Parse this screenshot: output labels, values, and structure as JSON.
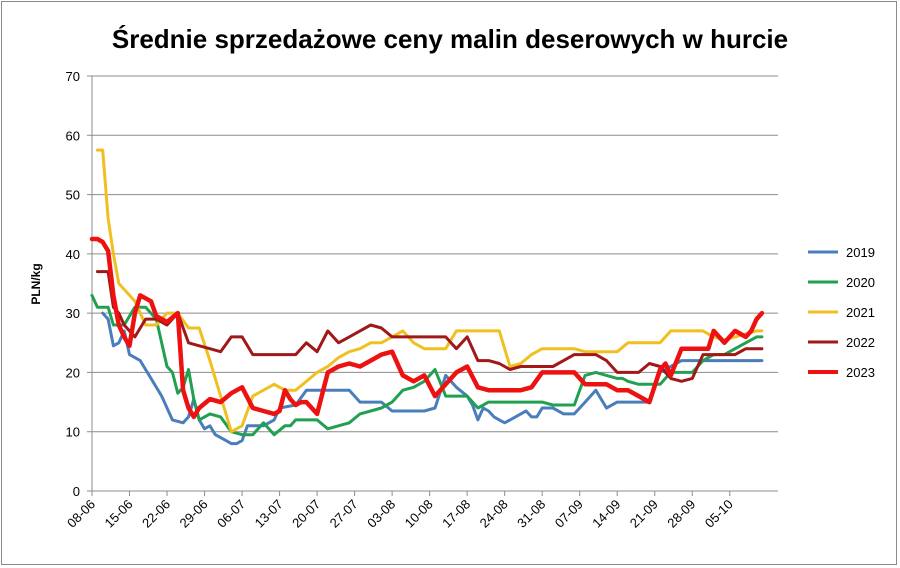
{
  "chart_data": {
    "type": "line",
    "title": "Średnie sprzedażowe ceny malin deserowych w hurcie",
    "xlabel": "",
    "ylabel": "PLN/kg",
    "ylim": [
      0,
      70
    ],
    "yticks": [
      0,
      10,
      20,
      30,
      40,
      50,
      60,
      70
    ],
    "xlim": [
      0,
      128
    ],
    "x_tick_labels": [
      "08-06",
      "15-06",
      "22-06",
      "29-06",
      "06-07",
      "13-07",
      "20-07",
      "27-07",
      "03-08",
      "10-08",
      "17-08",
      "24-08",
      "31-08",
      "07-09",
      "14-09",
      "21-09",
      "28-09",
      "05-10"
    ],
    "x_tick_days": [
      0,
      7,
      14,
      21,
      28,
      35,
      42,
      49,
      56,
      63,
      70,
      77,
      84,
      91,
      98,
      105,
      112,
      119
    ],
    "grid": "horizontal",
    "legend_position": "right",
    "series": [
      {
        "name": "2019",
        "color": "#4a7ebb",
        "x": [
          2,
          3,
          4,
          5,
          6,
          7,
          9,
          11,
          13,
          15,
          17,
          18,
          19,
          20,
          21,
          22,
          23,
          24,
          25,
          26,
          27,
          28,
          29,
          30,
          31,
          32,
          33,
          34,
          35,
          38,
          40,
          42,
          44,
          46,
          48,
          50,
          52,
          54,
          56,
          58,
          60,
          62,
          64,
          66,
          68,
          70,
          71,
          72,
          73,
          74,
          75,
          76,
          77,
          78,
          79,
          80,
          81,
          82,
          83,
          84,
          86,
          88,
          90,
          92,
          94,
          96,
          98,
          100,
          102,
          104,
          106,
          108,
          110,
          112,
          114,
          116,
          118,
          120,
          121,
          122,
          124,
          125
        ],
        "y": [
          30,
          29,
          24.5,
          25,
          27,
          23,
          22,
          19,
          16,
          12,
          11.5,
          12.5,
          15.5,
          12,
          10.5,
          11,
          9.5,
          9,
          8.5,
          8,
          8,
          8.5,
          11,
          11,
          11,
          11,
          11.5,
          12,
          14,
          14.5,
          17,
          17,
          17,
          17,
          17,
          15,
          15,
          15,
          13.5,
          13.5,
          13.5,
          13.5,
          14,
          19.5,
          17.5,
          16,
          14.5,
          12,
          14,
          13.5,
          12.5,
          12,
          11.5,
          12,
          12.5,
          13,
          13.5,
          12.5,
          12.5,
          14,
          14,
          13,
          13,
          15,
          17,
          14,
          15,
          15,
          15,
          15,
          20,
          21,
          22,
          22,
          22,
          22,
          22,
          22,
          22,
          22,
          22,
          22
        ]
      },
      {
        "name": "2020",
        "color": "#20a050",
        "x": [
          0,
          1,
          3,
          4,
          6,
          8,
          10,
          12,
          14,
          15,
          16,
          17,
          18,
          19,
          20,
          22,
          24,
          26,
          28,
          30,
          32,
          34,
          36,
          37,
          38,
          40,
          42,
          44,
          46,
          48,
          50,
          52,
          54,
          56,
          58,
          60,
          62,
          64,
          66,
          68,
          70,
          72,
          74,
          76,
          78,
          80,
          82,
          84,
          86,
          88,
          90,
          92,
          94,
          96,
          98,
          99,
          100,
          102,
          104,
          106,
          108,
          110,
          112,
          114,
          116,
          118,
          120,
          122,
          124,
          125
        ],
        "y": [
          33,
          31,
          31,
          28,
          28,
          31,
          31,
          29,
          21,
          20,
          16.5,
          17.5,
          20.5,
          15.5,
          12,
          13,
          12.5,
          10,
          9.5,
          9.5,
          11.5,
          9.5,
          11,
          11,
          12,
          12,
          12,
          10.5,
          11,
          11.5,
          13,
          13.5,
          14,
          15,
          17,
          17.5,
          18.5,
          20.5,
          16,
          16,
          16,
          14,
          15,
          15,
          15,
          15,
          15,
          15,
          14.5,
          14.5,
          14.5,
          19.5,
          20,
          19.5,
          19,
          19,
          18.5,
          18,
          18,
          18,
          20,
          20,
          20,
          22,
          23,
          23,
          24,
          25,
          26,
          26
        ]
      },
      {
        "name": "2021",
        "color": "#f0c020",
        "x": [
          1,
          2,
          3,
          4,
          5,
          6,
          8,
          10,
          12,
          14,
          16,
          18,
          20,
          22,
          24,
          26,
          28,
          30,
          32,
          34,
          36,
          38,
          40,
          42,
          44,
          46,
          48,
          50,
          52,
          54,
          56,
          58,
          60,
          62,
          64,
          66,
          68,
          70,
          72,
          74,
          76,
          78,
          80,
          82,
          84,
          86,
          88,
          90,
          92,
          94,
          96,
          98,
          100,
          102,
          104,
          106,
          108,
          110,
          112,
          114,
          116,
          118,
          120,
          122,
          124,
          125
        ],
        "y": [
          57.5,
          57.5,
          46,
          40,
          35,
          34,
          32,
          28,
          28,
          30,
          30,
          27.5,
          27.5,
          22,
          16,
          10,
          11,
          16,
          17,
          18,
          17,
          17,
          18.5,
          20,
          21,
          22.5,
          23.5,
          24,
          25,
          25,
          26,
          27,
          25,
          24,
          24,
          24,
          27,
          27,
          27,
          27,
          27,
          21,
          21.5,
          23,
          24,
          24,
          24,
          24,
          23.5,
          23.5,
          23.5,
          23.5,
          25,
          25,
          25,
          25,
          27,
          27,
          27,
          27,
          26,
          25.5,
          26,
          26.5,
          27,
          27
        ]
      },
      {
        "name": "2022",
        "color": "#a01818",
        "x": [
          1,
          2,
          3,
          4,
          5,
          6,
          8,
          10,
          12,
          14,
          16,
          18,
          20,
          22,
          24,
          26,
          28,
          30,
          32,
          34,
          36,
          38,
          40,
          42,
          44,
          46,
          48,
          50,
          52,
          54,
          56,
          58,
          60,
          62,
          64,
          66,
          68,
          70,
          72,
          74,
          76,
          78,
          80,
          82,
          84,
          86,
          88,
          90,
          92,
          94,
          96,
          98,
          100,
          102,
          104,
          106,
          108,
          110,
          112,
          114,
          116,
          118,
          120,
          122,
          124,
          125
        ],
        "y": [
          37,
          37,
          37,
          31,
          30,
          28,
          26,
          29,
          29,
          28,
          30,
          25,
          24.5,
          24,
          23.5,
          26,
          26,
          23,
          23,
          23,
          23,
          23,
          25,
          23.5,
          27,
          25,
          26,
          27,
          28,
          27.5,
          26,
          26,
          26,
          26,
          26,
          26,
          24,
          26,
          22,
          22,
          21.5,
          20.5,
          21,
          21,
          21,
          21,
          22,
          23,
          23,
          23,
          22,
          20,
          20,
          20,
          21.5,
          21,
          19,
          18.5,
          19,
          23,
          23,
          23,
          23,
          24,
          24,
          24
        ]
      },
      {
        "name": "2023",
        "color": "#ee1111",
        "x": [
          0,
          1,
          2,
          3,
          4,
          5,
          6,
          7,
          8,
          9,
          10,
          11,
          12,
          14,
          16,
          17,
          18,
          19,
          20,
          22,
          24,
          26,
          28,
          30,
          32,
          34,
          35,
          36,
          37,
          38,
          39,
          40,
          42,
          44,
          45,
          46,
          48,
          50,
          52,
          54,
          56,
          58,
          60,
          62,
          64,
          66,
          68,
          70,
          72,
          74,
          76,
          78,
          80,
          82,
          84,
          86,
          88,
          90,
          92,
          94,
          96,
          98,
          100,
          102,
          104,
          106,
          107,
          108,
          110,
          112,
          114,
          115,
          116,
          118,
          120,
          122,
          123,
          124,
          125
        ],
        "y": [
          42.5,
          42.5,
          42,
          40.5,
          33,
          28,
          26,
          24.5,
          30,
          33,
          32.5,
          32,
          29.5,
          28.5,
          30,
          17,
          14,
          12.5,
          14,
          15.5,
          15,
          16.5,
          17.5,
          14,
          13.5,
          13,
          13.5,
          17,
          15.5,
          14.5,
          15,
          15,
          13,
          20,
          20.5,
          21,
          21.5,
          21,
          22,
          23,
          23.5,
          19.5,
          18.5,
          19.5,
          16,
          18,
          20,
          21,
          17.5,
          17,
          17,
          17,
          17,
          17.5,
          20,
          20,
          20,
          20,
          18,
          18,
          18,
          17,
          17,
          16,
          15,
          20.5,
          21.5,
          19.5,
          24,
          24,
          24,
          24,
          27,
          25,
          27,
          26,
          27,
          29,
          30
        ]
      }
    ]
  }
}
